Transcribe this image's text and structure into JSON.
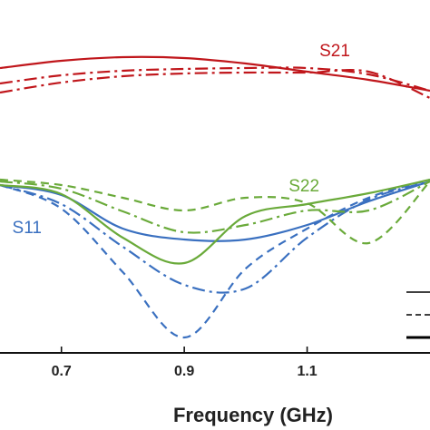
{
  "chart_data": {
    "type": "line",
    "xlabel": "Frequency (GHz)",
    "ylabel": "",
    "xlim": [
      0.6,
      1.3
    ],
    "xticks": [
      0.7,
      0.9,
      1.1
    ],
    "xtick_labels": [
      "0.7",
      "0.9",
      "1.1"
    ],
    "annotations": [
      {
        "text": "S21",
        "x": 1.12,
        "y": 62,
        "color": "#c0161b"
      },
      {
        "text": "S22",
        "x": 1.07,
        "y": 211,
        "color": "#6aaa3a"
      },
      {
        "text": "S11",
        "x": 0.62,
        "y": 257,
        "color": "#3a70c0"
      }
    ],
    "series": [
      {
        "group": "S21",
        "style": "solid",
        "color": "#c0161b",
        "x": [
          0.6,
          0.7,
          0.8,
          0.9,
          1.0,
          1.1,
          1.2,
          1.3
        ],
        "y": [
          75,
          67,
          63,
          64,
          70,
          79,
          88,
          100
        ]
      },
      {
        "group": "S21",
        "style": "dashdot",
        "color": "#c0161b",
        "x": [
          0.6,
          0.7,
          0.8,
          0.9,
          1.0,
          1.1,
          1.2,
          1.3
        ],
        "y": [
          92,
          83,
          78,
          76,
          75,
          75,
          82,
          100
        ]
      },
      {
        "group": "S21",
        "style": "dashdot",
        "color": "#c0161b",
        "x": [
          0.6,
          0.7,
          0.8,
          0.9,
          1.0,
          1.1,
          1.2,
          1.3
        ],
        "y": [
          102,
          91,
          84,
          81,
          80,
          80,
          79,
          108
        ]
      },
      {
        "group": "S11",
        "style": "solid",
        "color": "#3a70c0",
        "x": [
          0.6,
          0.7,
          0.8,
          0.9,
          1.0,
          1.1,
          1.2,
          1.3
        ],
        "y": [
          204,
          215,
          252,
          264,
          264,
          248,
          222,
          200
        ]
      },
      {
        "group": "S11",
        "style": "dashdot",
        "color": "#3a70c0",
        "x": [
          0.6,
          0.7,
          0.8,
          0.9,
          1.0,
          1.1,
          1.2,
          1.3
        ],
        "y": [
          204,
          225,
          272,
          314,
          318,
          262,
          220,
          200
        ]
      },
      {
        "group": "S11",
        "style": "dashed",
        "color": "#3a70c0",
        "x": [
          0.6,
          0.7,
          0.8,
          0.9,
          1.0,
          1.1,
          1.2,
          1.3
        ],
        "y": [
          204,
          230,
          300,
          372,
          296,
          252,
          218,
          198
        ]
      },
      {
        "group": "S22",
        "style": "solid",
        "color": "#6aaa3a",
        "x": [
          0.6,
          0.7,
          0.8,
          0.9,
          1.0,
          1.1,
          1.2,
          1.3
        ],
        "y": [
          204,
          214,
          262,
          290,
          238,
          225,
          213,
          198
        ]
      },
      {
        "group": "S22",
        "style": "dashdot",
        "color": "#6aaa3a",
        "x": [
          0.6,
          0.7,
          0.8,
          0.9,
          1.0,
          1.1,
          1.2,
          1.3
        ],
        "y": [
          200,
          208,
          233,
          256,
          248,
          232,
          232,
          200
        ]
      },
      {
        "group": "S22",
        "style": "dashed",
        "color": "#6aaa3a",
        "x": [
          0.6,
          0.7,
          0.8,
          0.9,
          1.0,
          1.1,
          1.2,
          1.3
        ],
        "y": [
          198,
          204,
          218,
          232,
          218,
          224,
          268,
          200
        ]
      }
    ],
    "legend": {
      "placement": "right-clipped",
      "entries": [
        {
          "style": "solid",
          "color": "#000000",
          "label": ""
        },
        {
          "style": "dashed",
          "color": "#000000",
          "label": ""
        },
        {
          "style": "solid-thick",
          "color": "#000000",
          "label": ""
        }
      ]
    }
  }
}
